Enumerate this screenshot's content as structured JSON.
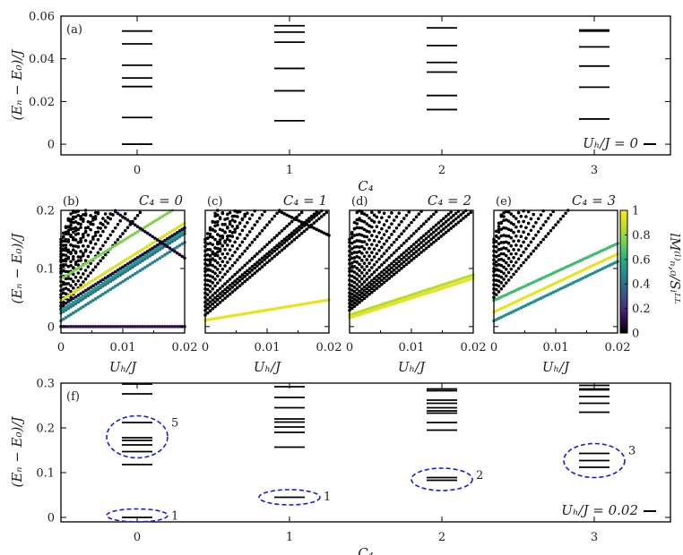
{
  "chart_data": [
    {
      "type": "levels",
      "panel": "(a)",
      "xlabel": "C₄",
      "ylabel": "(Eₙ − E₀)/J",
      "xlim": [
        -0.5,
        3.5
      ],
      "ylim": [
        -0.005,
        0.06
      ],
      "xticks": [
        "0",
        "1",
        "2",
        "3"
      ],
      "yticks": [
        {
          "v": 0,
          "t": "0"
        },
        {
          "v": 0.02,
          "t": "0.02"
        },
        {
          "v": 0.04,
          "t": "0.04"
        },
        {
          "v": 0.06,
          "t": "0.06"
        }
      ],
      "legend": "Uₕ/J = 0",
      "legend_position": "bottom-right",
      "levels": [
        [
          0.053,
          0.047,
          0.037,
          0.031,
          0.027,
          0.0125,
          0.0
        ],
        [
          0.0555,
          0.0525,
          0.0478,
          0.0355,
          0.025,
          0.011
        ],
        [
          0.0545,
          0.0462,
          0.0383,
          0.0338,
          0.0228,
          0.0162
        ],
        [
          0.0535,
          0.053,
          0.0456,
          0.0366,
          0.0267,
          0.0118
        ]
      ]
    },
    {
      "type": "scatter",
      "panel": "(b)",
      "title": "C₄ = 0",
      "xlabel": "Uₕ/J",
      "ylabel": "(Eₙ − E₀)/J",
      "xlim": [
        0,
        0.02
      ],
      "ylim": [
        -0.011,
        0.2
      ],
      "xticks": [
        "0",
        "0.01",
        "0.02"
      ],
      "yticks": [
        "0",
        "0.1",
        "0.2"
      ],
      "lines_E_at_0_E_at_0.02_weight": [
        [
          0,
          0,
          0.12
        ],
        [
          0.01,
          0.145,
          0.45
        ],
        [
          0.023,
          0.16,
          0.4
        ],
        [
          0.028,
          0.165,
          0.55
        ],
        [
          0.035,
          0.17,
          0.08
        ],
        [
          0.045,
          0.178,
          0.92
        ],
        [
          0.082,
          0.213,
          0.75
        ],
        [
          0.26,
          0.118,
          0.05
        ],
        [
          0.03,
          0.29,
          0
        ],
        [
          0.036,
          0.34,
          0
        ],
        [
          0.042,
          0.4,
          0
        ],
        [
          0.05,
          0.45,
          0
        ],
        [
          0.055,
          0.52,
          0
        ],
        [
          0.062,
          0.6,
          0
        ],
        [
          0.07,
          0.38,
          0
        ],
        [
          0.078,
          0.5,
          0
        ],
        [
          0.085,
          0.62,
          0
        ],
        [
          0.092,
          0.7,
          0
        ],
        [
          0.1,
          0.42,
          0
        ],
        [
          0.105,
          0.55,
          0
        ],
        [
          0.112,
          0.68,
          0
        ],
        [
          0.12,
          0.8,
          0
        ],
        [
          0.125,
          0.5,
          0
        ],
        [
          0.13,
          0.62,
          0
        ],
        [
          0.135,
          0.75,
          0
        ],
        [
          0.14,
          0.9,
          0
        ],
        [
          0.145,
          0.58,
          0
        ],
        [
          0.15,
          0.7,
          0
        ],
        [
          0.115,
          0.95,
          0
        ],
        [
          0.095,
          1.0,
          0
        ]
      ]
    },
    {
      "type": "scatter",
      "panel": "(c)",
      "title": "C₄ = 1",
      "xlabel": "Uₕ/J",
      "xlim": [
        0,
        0.02
      ],
      "ylim": [
        -0.011,
        0.2
      ],
      "xticks": [
        "0",
        "0.01",
        "0.02"
      ],
      "lines_E_at_0_E_at_0.02_weight": [
        [
          0.011,
          0.046,
          0.95
        ],
        [
          0.26,
          0.157,
          0
        ],
        [
          0.02,
          0.2,
          0
        ],
        [
          0.028,
          0.21,
          0
        ],
        [
          0.035,
          0.215,
          0
        ],
        [
          0.042,
          0.24,
          0
        ],
        [
          0.05,
          0.3,
          0
        ],
        [
          0.058,
          0.35,
          0
        ],
        [
          0.065,
          0.4,
          0
        ],
        [
          0.072,
          0.45,
          0
        ],
        [
          0.08,
          0.5,
          0
        ],
        [
          0.088,
          0.55,
          0
        ],
        [
          0.095,
          0.6,
          0
        ],
        [
          0.1,
          0.38,
          0
        ],
        [
          0.108,
          0.45,
          0
        ],
        [
          0.115,
          0.55,
          0
        ],
        [
          0.122,
          0.65,
          0
        ],
        [
          0.13,
          0.75,
          0
        ],
        [
          0.138,
          0.85,
          0
        ],
        [
          0.145,
          0.5,
          0
        ],
        [
          0.15,
          0.65,
          0
        ]
      ]
    },
    {
      "type": "scatter",
      "panel": "(d)",
      "title": "C₄ = 2",
      "xlabel": "Uₕ/J",
      "xlim": [
        0,
        0.02
      ],
      "ylim": [
        -0.011,
        0.2
      ],
      "xticks": [
        "0",
        "0.01",
        "0.02"
      ],
      "lines_E_at_0_E_at_0.02_weight": [
        [
          0.02,
          0.089,
          0.85
        ],
        [
          0.015,
          0.083,
          0.95
        ],
        [
          0.028,
          0.2,
          0
        ],
        [
          0.034,
          0.21,
          0
        ],
        [
          0.04,
          0.22,
          0
        ],
        [
          0.046,
          0.23,
          0
        ],
        [
          0.052,
          0.26,
          0
        ],
        [
          0.058,
          0.3,
          0
        ],
        [
          0.065,
          0.34,
          0
        ],
        [
          0.072,
          0.38,
          0
        ],
        [
          0.08,
          0.42,
          0
        ],
        [
          0.088,
          0.47,
          0
        ],
        [
          0.095,
          0.52,
          0
        ],
        [
          0.1,
          0.56,
          0
        ],
        [
          0.108,
          0.6,
          0
        ],
        [
          0.115,
          0.66,
          0
        ],
        [
          0.122,
          0.72,
          0
        ],
        [
          0.13,
          0.8,
          0
        ],
        [
          0.138,
          0.9,
          0
        ],
        [
          0.145,
          1.0,
          0
        ],
        [
          0.15,
          0.6,
          0
        ]
      ]
    },
    {
      "type": "scatter",
      "panel": "(e)",
      "title": "C₄ = 3",
      "xlabel": "Uₕ/J",
      "xlim": [
        0,
        0.02
      ],
      "ylim": [
        -0.011,
        0.2
      ],
      "xticks": [
        "0",
        "0.01",
        "0.02"
      ],
      "lines_E_at_0_E_at_0.02_weight": [
        [
          0.045,
          0.143,
          0.65
        ],
        [
          0.025,
          0.125,
          0.95
        ],
        [
          0.01,
          0.112,
          0.5
        ],
        [
          0.05,
          0.3,
          0
        ],
        [
          0.058,
          0.35,
          0
        ],
        [
          0.065,
          0.4,
          0
        ],
        [
          0.072,
          0.45,
          0
        ],
        [
          0.08,
          0.5,
          0
        ],
        [
          0.088,
          0.55,
          0
        ],
        [
          0.095,
          0.6,
          0
        ],
        [
          0.1,
          0.66,
          0
        ],
        [
          0.108,
          0.72,
          0
        ],
        [
          0.115,
          0.8,
          0
        ],
        [
          0.122,
          0.88,
          0
        ],
        [
          0.13,
          0.95,
          0
        ],
        [
          0.138,
          1.0,
          0
        ],
        [
          0.145,
          0.7,
          0
        ],
        [
          0.15,
          0.85,
          0
        ]
      ],
      "colorbar": {
        "label": "lM⁽ˡ⁾ₙ,₀/Sₗᴸᴸ",
        "range": [
          0,
          1
        ],
        "ticks": [
          "0",
          "0.2",
          "0.4",
          "0.6",
          "0.8",
          "1"
        ],
        "colormap": "viridis"
      }
    },
    {
      "type": "levels",
      "panel": "(f)",
      "xlabel": "C₄",
      "ylabel": "(Eₙ − E₀)/J",
      "xlim": [
        -0.5,
        3.5
      ],
      "ylim": [
        -0.01,
        0.3
      ],
      "xticks": [
        "0",
        "1",
        "2",
        "3"
      ],
      "yticks": [
        {
          "v": 0,
          "t": "0"
        },
        {
          "v": 0.1,
          "t": "0.1"
        },
        {
          "v": 0.2,
          "t": "0.2"
        },
        {
          "v": 0.3,
          "t": "0.3"
        }
      ],
      "legend": "Uₕ/J = 0.02",
      "legend_position": "bottom-right",
      "levels": [
        [
          0.298,
          0.276,
          0.212,
          0.178,
          0.172,
          0.162,
          0.147,
          0.118,
          0.0
        ],
        [
          0.292,
          0.268,
          0.245,
          0.22,
          0.213,
          0.202,
          0.19,
          0.157,
          0.045
        ],
        [
          0.287,
          0.283,
          0.262,
          0.255,
          0.245,
          0.238,
          0.233,
          0.212,
          0.195,
          0.089,
          0.083
        ],
        [
          0.295,
          0.287,
          0.285,
          0.27,
          0.255,
          0.235,
          0.143,
          0.127,
          0.112
        ]
      ],
      "annotations": [
        {
          "c4": 0,
          "ymin": -0.01,
          "ymax": 0.019,
          "label": "1"
        },
        {
          "c4": 0,
          "ymin": 0.133,
          "ymax": 0.227,
          "label": "5"
        },
        {
          "c4": 1,
          "ymin": 0.028,
          "ymax": 0.062,
          "label": "1"
        },
        {
          "c4": 2,
          "ymin": 0.06,
          "ymax": 0.11,
          "label": "2"
        },
        {
          "c4": 3,
          "ymin": 0.089,
          "ymax": 0.165,
          "label": "3"
        }
      ],
      "annotation_color": "#1a1adb"
    }
  ]
}
